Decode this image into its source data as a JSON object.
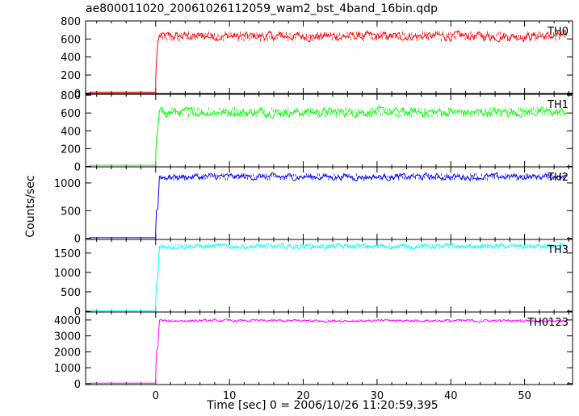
{
  "title": "ae800011020_20061026112059_wam2_bst_4band_16bin.qdp",
  "xlabel": "Time [sec] 0 = 2006/10/26 11:20:59.395",
  "ylabel": "Counts/sec",
  "chart_data": {
    "type": "line",
    "title": "ae800011020_20061026112059_wam2_bst_4band_16bin.qdp",
    "xlabel": "Time [sec] 0 = 2006/10/26 11:20:59.395",
    "ylabel": "Counts/sec",
    "xlim": [
      -9.5,
      56.5
    ],
    "xticks": [
      0,
      10,
      20,
      30,
      40,
      50
    ],
    "grid": false,
    "shared_x": true,
    "trigger_time": 0,
    "panels": [
      {
        "name": "TH0",
        "color": "#ff0000",
        "ylim": [
          -5,
          800
        ],
        "yticks": [
          0,
          200,
          400,
          600,
          800
        ],
        "pre_level": 10,
        "rise": [
          {
            "x": 0.0,
            "y": 150
          },
          {
            "x": 0.1,
            "y": 350
          },
          {
            "x": 0.3,
            "y": 570
          }
        ],
        "level": 630,
        "noise": 45
      },
      {
        "name": "TH1",
        "color": "#00ff00",
        "ylim": [
          -5,
          810
        ],
        "yticks": [
          0,
          200,
          400,
          600,
          800
        ],
        "pre_level": 12,
        "rise": [
          {
            "x": 0.0,
            "y": 120
          },
          {
            "x": 0.1,
            "y": 330
          },
          {
            "x": 0.3,
            "y": 420
          }
        ],
        "level": 610,
        "noise": 45
      },
      {
        "name": "TH2",
        "color": "#0000ff",
        "ylim": [
          -20,
          1290
        ],
        "yticks": [
          0,
          500,
          1000
        ],
        "pre_level": 10,
        "rise": [
          {
            "x": 0.0,
            "y": 150
          },
          {
            "x": 0.1,
            "y": 500
          },
          {
            "x": 0.3,
            "y": 530
          }
        ],
        "level": 1110,
        "noise": 55
      },
      {
        "name": "TH3",
        "color": "#00ffff",
        "ylim": [
          -20,
          1850
        ],
        "yticks": [
          0,
          500,
          1000,
          1500
        ],
        "pre_level": 10,
        "rise": [
          {
            "x": 0.0,
            "y": 200
          },
          {
            "x": 0.1,
            "y": 700
          },
          {
            "x": 0.3,
            "y": 900
          }
        ],
        "level": 1670,
        "noise": 60
      },
      {
        "name": "TH0123",
        "color": "#ff00ff",
        "ylim": [
          -60,
          4500
        ],
        "yticks": [
          0,
          1000,
          2000,
          3000,
          4000
        ],
        "pre_level": 30,
        "rise": [
          {
            "x": 0.0,
            "y": 500
          },
          {
            "x": 0.1,
            "y": 2000
          },
          {
            "x": 0.3,
            "y": 2300
          }
        ],
        "level": 3950,
        "noise": 80
      }
    ]
  }
}
